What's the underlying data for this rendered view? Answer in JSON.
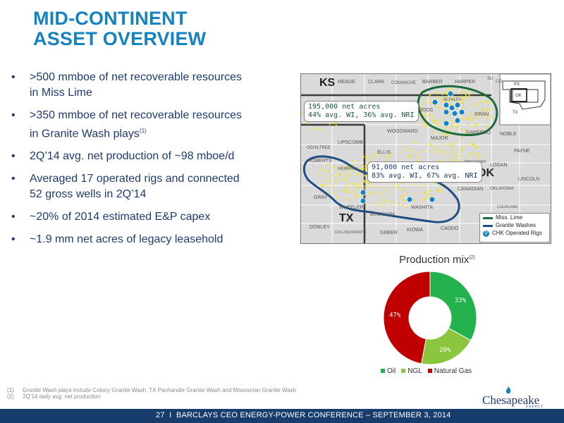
{
  "title": {
    "line1": "MID-CONTINENT",
    "line2": "ASSET OVERVIEW"
  },
  "bullets": [
    {
      "line1": ">500 mmboe of net recoverable resources",
      "line2": "in Miss Lime",
      "sup": ""
    },
    {
      "line1": ">350 mmboe of net recoverable resources",
      "line2": "in Granite Wash plays",
      "sup": "(1)"
    },
    {
      "line1": "2Q’14 avg. net production of ~98 mboe/d",
      "line2": "",
      "sup": ""
    },
    {
      "line1": "Averaged 17 operated rigs and connected",
      "line2": "52 gross wells in 2Q’14",
      "sup": ""
    },
    {
      "line1": "~20% of 2014 estimated E&P capex",
      "line2": "",
      "sup": ""
    },
    {
      "line1": "~1.9 mm net acres of legacy leasehold",
      "line2": "",
      "sup": ""
    }
  ],
  "map": {
    "state_labels": {
      "ks": "KS",
      "ok": "OK",
      "tx": "TX"
    },
    "counties": {
      "meade": "MEADE",
      "clark": "CLARK",
      "comanche": "COMANCHE",
      "barber": "BARBER",
      "harper": "HARPER",
      "su": "SU",
      "co": "CO",
      "woods": "WOODS",
      "alfalfa": "ALFALFA",
      "grant": "GRAN",
      "woodward": "WOODWARD",
      "major": "MAJOR",
      "garfield": "GARFIELD",
      "noble": "NOBLE",
      "ochiltree": "OCHILTREE",
      "lipscomb": "LIPSCOMB",
      "ellis": "ELLIS",
      "payne": "PAYNE",
      "roberts": "ROBERTS",
      "hemphill": "HEMPHILL",
      "kingfisher": "KINGFISHER",
      "logan": "LOGAN",
      "lincoln": "LINCOLN",
      "custer": "CUSTER",
      "canadian": "CANADIAN",
      "oklahoma": "OKLAHOMA",
      "gray": "GRAY",
      "cleveland": "CLEVELAND",
      "wheeler": "WHEELER",
      "beckham": "BECKHAM",
      "washita": "WASHITA",
      "donley": "DONLEY",
      "collingsworth": "COLLINGSWORTH",
      "greer": "GREER",
      "kiowa": "KIOWA",
      "caddo": "CADDO"
    },
    "inset_labels": {
      "ks": "KS",
      "ok": "OK",
      "tx": "TX"
    },
    "box_miss": {
      "line1": "195,000 net acres",
      "line2": "44% avg. WI, 36% avg. NRI"
    },
    "box_granite": {
      "line1": "91,000 net acres",
      "line2": "83% avg. WI, 67% avg. NRI"
    },
    "legend": {
      "miss_lime": "Miss. Lime",
      "granite_washes": "Granite Washes",
      "rigs": "CHK Operated Rigs"
    },
    "colors": {
      "miss_lime": "#1a6b3c",
      "granite": "#1f4e86",
      "rig": "#1583c1",
      "wells": "#f5e400"
    }
  },
  "chart_data": {
    "type": "pie",
    "title": "Production mix",
    "title_sup": "(2)",
    "donut": true,
    "series": [
      {
        "name": "Oil",
        "value": 33,
        "label": "33%",
        "color": "#22b14c"
      },
      {
        "name": "NGL",
        "value": 20,
        "label": "20%",
        "color": "#8cc63f"
      },
      {
        "name": "Natural Gas",
        "value": 47,
        "label": "47%",
        "color": "#c00000"
      }
    ],
    "legend_position": "bottom"
  },
  "footnotes": [
    {
      "num": "(1)",
      "text": "Granite Wash plays include Colony Granite Wash, TX Panhandle Granite Wash and Missourian Granite Wash"
    },
    {
      "num": "(2)",
      "text": "2Q’14 daily avg. net production"
    }
  ],
  "footer": {
    "page": "27",
    "separator": "I",
    "text": "BARCLAYS CEO ENERGY-POWER CONFERENCE – SEPTEMBER 3, 2014"
  },
  "logo": {
    "word": "Chesapeake",
    "sub": "ENERGY"
  }
}
